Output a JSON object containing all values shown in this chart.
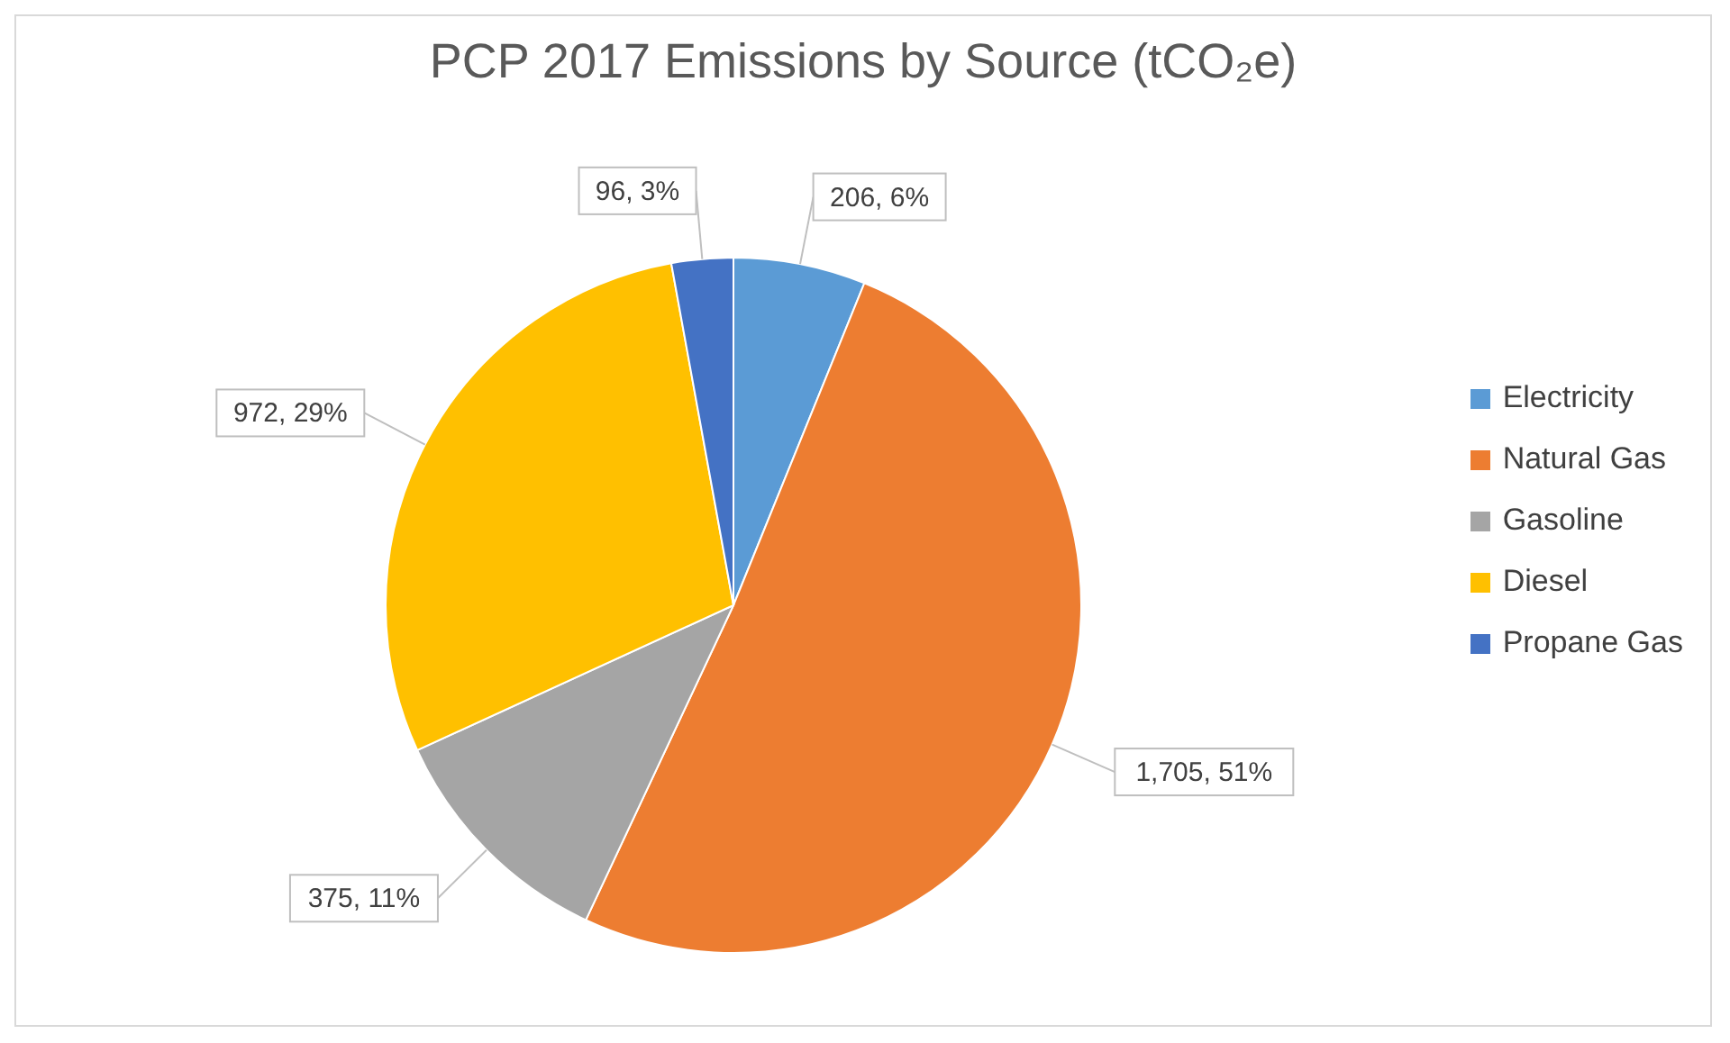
{
  "chart_data": {
    "type": "pie",
    "title": "PCP 2017 Emissions by Source (tCO₂e)",
    "categories": [
      "Electricity",
      "Natural Gas",
      "Gasoline",
      "Diesel",
      "Propane Gas"
    ],
    "values": [
      206,
      1705,
      375,
      972,
      96
    ],
    "colors": [
      "#5b9bd5",
      "#ed7d31",
      "#a5a5a5",
      "#ffc000",
      "#4472c4"
    ],
    "value_labels": [
      "206, 6%",
      "1,705, 51%",
      "375, 11%",
      "972, 29%",
      "96, 3%"
    ],
    "legend": "right"
  }
}
